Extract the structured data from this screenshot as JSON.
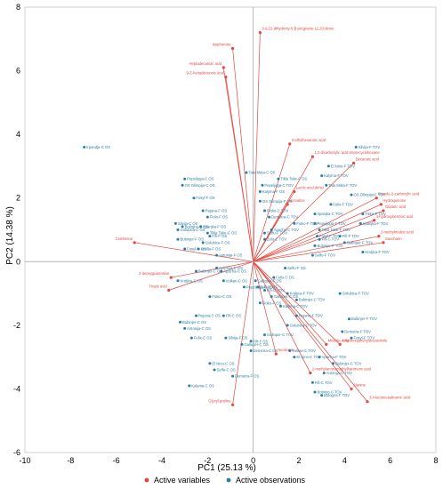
{
  "chart_data": {
    "type": "scatter",
    "xlabel": "PC1 (25.13 %)",
    "ylabel": "PC2 (14.38 %)",
    "xlim": [
      -10,
      8
    ],
    "ylim": [
      -6,
      8
    ],
    "xticks": [
      -10,
      -8,
      -6,
      -4,
      -2,
      0,
      2,
      4,
      6,
      8
    ],
    "yticks": [
      -6,
      -4,
      -2,
      0,
      2,
      4,
      6,
      8
    ],
    "grid": false,
    "legend_position": "bottom",
    "legend": [
      {
        "name": "Active variables",
        "color": "#e8453c"
      },
      {
        "name": "Active observations",
        "color": "#2a7da3"
      }
    ],
    "active_variables": [
      {
        "label": "3-α,21-dihydroxy-5-β-pregnane-11,20-dione",
        "x": 0.3,
        "y": 7.2
      },
      {
        "label": "Isophorone",
        "x": -0.9,
        "y": 6.7
      },
      {
        "label": "Heptadecanoic acid",
        "x": -1.3,
        "y": 6.1
      },
      {
        "label": "9-Z-hexadecenoic acid",
        "x": -1.2,
        "y": 5.8
      },
      {
        "label": "2-ethylhexanoic acid",
        "x": 1.6,
        "y": 3.7
      },
      {
        "label": "1,2-dicarboxylic acid-trans-cyclohexane",
        "x": 2.6,
        "y": 3.3
      },
      {
        "label": "Decanoic acid",
        "x": 4.4,
        "y": 3.1
      },
      {
        "label": "Pyrrole-2-carboxylic acid",
        "x": 5.4,
        "y": 2.0
      },
      {
        "label": "Hydroquinone",
        "x": 5.6,
        "y": 1.8
      },
      {
        "label": "Glutaric acid",
        "x": 5.7,
        "y": 1.6
      },
      {
        "label": "4-hydroxybenzoic acid",
        "x": 5.3,
        "y": 1.3
      },
      {
        "label": "2-methylmaleic acid",
        "x": 5.5,
        "y": 0.8
      },
      {
        "label": "Saccharin",
        "x": 5.7,
        "y": 0.6
      },
      {
        "label": "Lactic acid dimer",
        "x": 1.8,
        "y": 2.2
      },
      {
        "label": "Norvaline",
        "x": 1.5,
        "y": 1.8
      },
      {
        "label": "Cembrene",
        "x": -5.2,
        "y": 0.6
      },
      {
        "label": "2-deoxyguanosine",
        "x": -3.6,
        "y": -0.5
      },
      {
        "label": "Tropic acid",
        "x": -3.7,
        "y": -0.9
      },
      {
        "label": "Glycyl proline",
        "x": -0.9,
        "y": -4.5
      },
      {
        "label": "Malonic acid",
        "x": 3.2,
        "y": -2.6
      },
      {
        "label": "4-hydroxyphenylacetonitrile",
        "x": 3.8,
        "y": -2.6
      },
      {
        "label": "Serotonin",
        "x": 1.0,
        "y": -2.9
      },
      {
        "label": "2-methylaminomethylhartmeric acid",
        "x": 2.5,
        "y": -3.5
      },
      {
        "label": "Alanine",
        "x": 4.3,
        "y": -4.0
      },
      {
        "label": "3,4-lactonesaltramic acid",
        "x": 5.0,
        "y": -4.4
      }
    ],
    "active_observations": [
      {
        "label": "Irpandja-C OS",
        "x": -7.4,
        "y": 3.6
      },
      {
        "label": "Pepeljuga-C OS",
        "x": -3.0,
        "y": 2.6
      },
      {
        "label": "OS Olimpija-C OS",
        "x": -3.1,
        "y": 2.4
      },
      {
        "label": "Fosyl-F OS",
        "x": -2.6,
        "y": 2.0
      },
      {
        "label": "Rujana-F OS",
        "x": -2.2,
        "y": 1.6
      },
      {
        "label": "Fiolo-F OS",
        "x": -2.0,
        "y": 1.4
      },
      {
        "label": "Irpanjka-F OS",
        "x": -2.3,
        "y": 1.1
      },
      {
        "label": "Tikla Take-C OS",
        "x": -2.0,
        "y": 0.9
      },
      {
        "label": "Silvija-C OS",
        "x": -3.4,
        "y": 1.2
      },
      {
        "label": "Bologna-C OS",
        "x": -3.1,
        "y": 1.1
      },
      {
        "label": "Golubica-C OS",
        "x": -3.3,
        "y": 1.0
      },
      {
        "label": "Fifi-F OS",
        "x": -1.9,
        "y": 0.8
      },
      {
        "label": "Bubinjer-F OS",
        "x": -3.3,
        "y": 0.7
      },
      {
        "label": "Golubica-F OS",
        "x": -2.2,
        "y": 0.6
      },
      {
        "label": "Fosyl-C OS",
        "x": -3.0,
        "y": 0.4
      },
      {
        "label": "Antilla-F OS",
        "x": -2.4,
        "y": 0.4
      },
      {
        "label": "Antonija-F OS",
        "x": -1.6,
        "y": 0.2
      },
      {
        "label": "Antonija-C OS",
        "x": -1.6,
        "y": -0.2
      },
      {
        "label": "Bubinjer-C OS",
        "x": -2.5,
        "y": -0.3
      },
      {
        "label": "Apacha-C OS",
        "x": -1.4,
        "y": -0.3
      },
      {
        "label": "Kraljica-C OS",
        "x": -3.3,
        "y": -0.6
      },
      {
        "label": "Vulkan-C OS",
        "x": -1.3,
        "y": -0.6
      },
      {
        "label": "Fioko-C OS",
        "x": -1.9,
        "y": -1.1
      },
      {
        "label": "Pepeljuga-F OS",
        "x": -0.4,
        "y": -0.8
      },
      {
        "label": "Rujana-C OS",
        "x": -2.5,
        "y": -1.7
      },
      {
        "label": "Fifi-C OS",
        "x": -1.3,
        "y": -1.7
      },
      {
        "label": "Bubinjer-C OS",
        "x": -3.2,
        "y": -1.9
      },
      {
        "label": "Antonija-C OS",
        "x": -3.0,
        "y": -2.1
      },
      {
        "label": "Felix-C OS",
        "x": -2.7,
        "y": -2.4
      },
      {
        "label": "Silvija-F OS",
        "x": -1.2,
        "y": -2.4
      },
      {
        "label": "Demetra-C OS",
        "x": -0.1,
        "y": -2.8
      },
      {
        "label": "El Nino-C OS",
        "x": -1.9,
        "y": -3.2
      },
      {
        "label": "Selfu-C OS",
        "x": -1.7,
        "y": -3.4
      },
      {
        "label": "Demetra-F OS",
        "x": -0.9,
        "y": -3.6
      },
      {
        "label": "Kalyma-C OS",
        "x": -2.8,
        "y": -3.9
      },
      {
        "label": "Tata Mata-C OS",
        "x": -0.3,
        "y": 2.8
      },
      {
        "label": "Tikla Take-F OS",
        "x": 1.1,
        "y": 2.6
      },
      {
        "label": "Pepeljuga-C TOV",
        "x": 0.4,
        "y": 2.4
      },
      {
        "label": "Kalyma-F OS",
        "x": 0.3,
        "y": 2.2
      },
      {
        "label": "OS Olimpija-F OS",
        "x": 0.3,
        "y": 1.9
      },
      {
        "label": "Fioko-C TOV",
        "x": 0.5,
        "y": 1.6
      },
      {
        "label": "Demetra-C TOV",
        "x": 0.7,
        "y": 1.4
      },
      {
        "label": "Fioko-F TOV",
        "x": 1.8,
        "y": 1.2
      },
      {
        "label": "Apacha-C TOV",
        "x": 0.8,
        "y": 1.0
      },
      {
        "label": "Selfu-F TOV",
        "x": 0.5,
        "y": 0.9
      },
      {
        "label": "Zelo-C TOV",
        "x": 0.5,
        "y": 0.7
      },
      {
        "label": "Silvija-F TOV",
        "x": 4.5,
        "y": 3.6
      },
      {
        "label": "El Nino-F TOV",
        "x": 3.3,
        "y": 3.0
      },
      {
        "label": "Kalyma-F TOV",
        "x": 3.0,
        "y": 2.7
      },
      {
        "label": "Tata Mata-F TOV",
        "x": 3.2,
        "y": 2.4
      },
      {
        "label": "OS Olimpija-F TOV",
        "x": 4.3,
        "y": 2.1
      },
      {
        "label": "Felix-F TOV",
        "x": 3.4,
        "y": 1.8
      },
      {
        "label": "Irpanjka-C TOV",
        "x": 2.7,
        "y": 1.5
      },
      {
        "label": "Tiska-F TOV",
        "x": 4.8,
        "y": 1.5
      },
      {
        "label": "Pepeljuga-F TOV",
        "x": 2.7,
        "y": 1.2
      },
      {
        "label": "Tikla Take-F TOV",
        "x": 2.9,
        "y": 1.0
      },
      {
        "label": "Irpanjka-F TOV",
        "x": 4.7,
        "y": 1.2
      },
      {
        "label": "Fosyl-F TOV",
        "x": 2.8,
        "y": 0.8
      },
      {
        "label": "Fifi-F TOV",
        "x": 3.8,
        "y": 0.8
      },
      {
        "label": "Fifi-C TOV",
        "x": 2.9,
        "y": 0.7
      },
      {
        "label": "Galloper-F TOV",
        "x": 4.0,
        "y": 0.6
      },
      {
        "label": "Bubinjer-F TOV",
        "x": 2.7,
        "y": 0.5
      },
      {
        "label": "Kraljica-F TOV",
        "x": 4.8,
        "y": 0.3
      },
      {
        "label": "Selfu-F TOV",
        "x": 2.6,
        "y": 0.2
      },
      {
        "label": "Selfu-F OS",
        "x": 1.4,
        "y": -0.2
      },
      {
        "label": "Felix-C OS",
        "x": 0.9,
        "y": -0.5
      },
      {
        "label": "Galloper-F OS",
        "x": 0.1,
        "y": -0.6
      },
      {
        "label": "Zelo-C OS",
        "x": 0.2,
        "y": -0.8
      },
      {
        "label": "Fifi-C TOV",
        "x": 0.5,
        "y": -0.9
      },
      {
        "label": "Kraljica-F TOV",
        "x": 1.5,
        "y": -1.0
      },
      {
        "label": "Galloper-C OS",
        "x": 0.8,
        "y": -1.1
      },
      {
        "label": "Fioko-F OS",
        "x": 0.3,
        "y": -1.3
      },
      {
        "label": "Kalyma-C TOV",
        "x": 1.2,
        "y": -1.4
      },
      {
        "label": "Bubinjer-C TOV",
        "x": 1.9,
        "y": -1.2
      },
      {
        "label": "Rujana-F TOV",
        "x": 1.9,
        "y": -1.7
      },
      {
        "label": "Golubica-F TOV",
        "x": 3.8,
        "y": -1.0
      },
      {
        "label": "Bubinjer-F TOV",
        "x": 4.2,
        "y": -1.8
      },
      {
        "label": "Demetra-F TOV",
        "x": 3.9,
        "y": -2.2
      },
      {
        "label": "Fosyl-F TOV",
        "x": 4.3,
        "y": -2.4
      },
      {
        "label": "Golubica-C TOV",
        "x": 1.5,
        "y": -2.0
      },
      {
        "label": "Galloper-C TOV",
        "x": 0.5,
        "y": -2.3
      },
      {
        "label": "Fifi-F OS",
        "x": -0.1,
        "y": -2.5
      },
      {
        "label": "Galloper-C OS",
        "x": -0.5,
        "y": -2.6
      },
      {
        "label": "Vulkan-C TOV",
        "x": 1.6,
        "y": -2.8
      },
      {
        "label": "El Nino-C TOV",
        "x": 1.8,
        "y": -3.0
      },
      {
        "label": "Apacha-F TOV",
        "x": 2.9,
        "y": -3.0
      },
      {
        "label": "Bubinjer-C TOV",
        "x": 3.5,
        "y": -3.2
      },
      {
        "label": "Antonija-C TOV",
        "x": 3.1,
        "y": -3.5
      },
      {
        "label": "Fifi-C TOV",
        "x": 2.6,
        "y": -3.8
      },
      {
        "label": "Bobinjo-C TOV",
        "x": 2.7,
        "y": -4.1
      },
      {
        "label": "Bologna-F TOV",
        "x": 3.0,
        "y": -4.2
      }
    ]
  }
}
